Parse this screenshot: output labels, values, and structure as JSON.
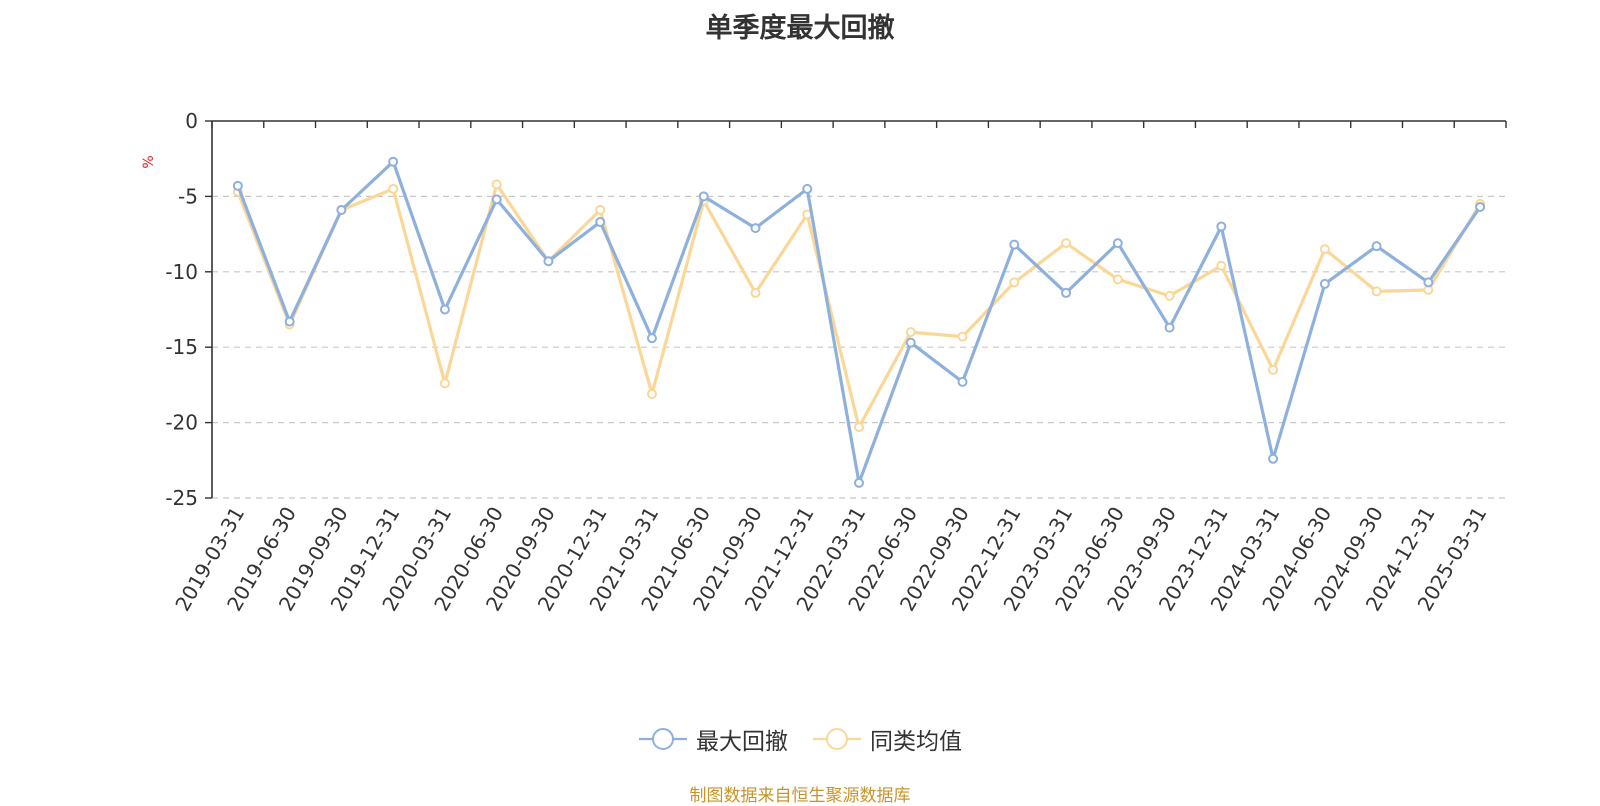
{
  "chart_data": {
    "type": "line",
    "title": "单季度最大回撤",
    "ylabel": "%",
    "ylim": [
      -25,
      0
    ],
    "yticks": [
      0,
      -5,
      -10,
      -15,
      -20,
      -25
    ],
    "grid": true,
    "legend_position": "bottom",
    "categories": [
      "2019-03-31",
      "2019-06-30",
      "2019-09-30",
      "2019-12-31",
      "2020-03-31",
      "2020-06-30",
      "2020-09-30",
      "2020-12-31",
      "2021-03-31",
      "2021-06-30",
      "2021-09-30",
      "2021-12-31",
      "2022-03-31",
      "2022-06-30",
      "2022-09-30",
      "2022-12-31",
      "2023-03-31",
      "2023-06-30",
      "2023-09-30",
      "2023-12-31",
      "2024-03-31",
      "2024-06-30",
      "2024-09-30",
      "2024-12-31",
      "2025-03-31"
    ],
    "series": [
      {
        "name": "最大回撤",
        "color": "#8eb0dc",
        "values": [
          -4.3,
          -13.3,
          -5.9,
          -2.7,
          -12.5,
          -5.2,
          -9.3,
          -6.7,
          -14.4,
          -5.0,
          -7.1,
          -4.5,
          -24.0,
          -14.7,
          -17.3,
          -8.2,
          -11.4,
          -8.1,
          -13.7,
          -7.0,
          -22.4,
          -10.8,
          -8.3,
          -10.7,
          -5.7
        ]
      },
      {
        "name": "同类均值",
        "color": "#fad797",
        "values": [
          -4.7,
          -13.5,
          -5.9,
          -4.5,
          -17.4,
          -4.2,
          -9.3,
          -5.9,
          -18.1,
          -5.3,
          -11.4,
          -6.2,
          -20.3,
          -14.0,
          -14.3,
          -10.7,
          -8.1,
          -10.5,
          -11.6,
          -9.6,
          -16.5,
          -8.5,
          -11.3,
          -11.2,
          -5.5
        ]
      }
    ]
  },
  "footer": {
    "source": "制图数据来自恒生聚源数据库",
    "source_color": "#c8942a"
  }
}
